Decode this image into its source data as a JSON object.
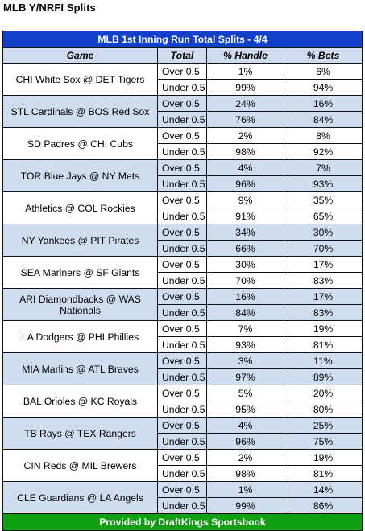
{
  "page_title": "MLB Y/NRFI Splits",
  "table": {
    "banner": "MLB 1st Inning Run Total Splits - 4/4",
    "headers": {
      "game": "Game",
      "total": "Total",
      "handle": "% Handle",
      "bets": "% Bets"
    },
    "games": [
      {
        "name": "CHI White Sox @ DET Tigers",
        "shaded": false,
        "over": {
          "label": "Over 0.5",
          "handle": "1%",
          "bets": "6%"
        },
        "under": {
          "label": "Under 0.5",
          "handle": "99%",
          "bets": "94%"
        }
      },
      {
        "name": "STL Cardinals @ BOS Red Sox",
        "shaded": true,
        "over": {
          "label": "Over 0.5",
          "handle": "24%",
          "bets": "16%"
        },
        "under": {
          "label": "Under 0.5",
          "handle": "76%",
          "bets": "84%"
        }
      },
      {
        "name": "SD Padres @ CHI Cubs",
        "shaded": false,
        "over": {
          "label": "Over 0.5",
          "handle": "2%",
          "bets": "8%"
        },
        "under": {
          "label": "Under 0.5",
          "handle": "98%",
          "bets": "92%"
        }
      },
      {
        "name": "TOR Blue Jays @ NY Mets",
        "shaded": true,
        "over": {
          "label": "Over 0.5",
          "handle": "4%",
          "bets": "7%"
        },
        "under": {
          "label": "Under 0.5",
          "handle": "96%",
          "bets": "93%"
        }
      },
      {
        "name": "Athletics @ COL Rockies",
        "shaded": false,
        "over": {
          "label": "Over 0.5",
          "handle": "9%",
          "bets": "35%"
        },
        "under": {
          "label": "Under 0.5",
          "handle": "91%",
          "bets": "65%"
        }
      },
      {
        "name": "NY Yankees @ PIT Pirates",
        "shaded": true,
        "over": {
          "label": "Over 0.5",
          "handle": "34%",
          "bets": "30%"
        },
        "under": {
          "label": "Under 0.5",
          "handle": "66%",
          "bets": "70%"
        }
      },
      {
        "name": "SEA Mariners @ SF Giants",
        "shaded": false,
        "over": {
          "label": "Over 0.5",
          "handle": "30%",
          "bets": "17%"
        },
        "under": {
          "label": "Under 0.5",
          "handle": "70%",
          "bets": "83%"
        }
      },
      {
        "name": "ARI Diamondbacks @ WAS Nationals",
        "shaded": true,
        "over": {
          "label": "Over 0.5",
          "handle": "16%",
          "bets": "17%"
        },
        "under": {
          "label": "Under 0.5",
          "handle": "84%",
          "bets": "83%"
        }
      },
      {
        "name": "LA Dodgers @ PHI Phillies",
        "shaded": false,
        "over": {
          "label": "Over 0.5",
          "handle": "7%",
          "bets": "19%"
        },
        "under": {
          "label": "Under 0.5",
          "handle": "93%",
          "bets": "81%"
        }
      },
      {
        "name": "MIA Marlins @ ATL Braves",
        "shaded": true,
        "over": {
          "label": "Over 0.5",
          "handle": "3%",
          "bets": "11%"
        },
        "under": {
          "label": "Under 0.5",
          "handle": "97%",
          "bets": "89%"
        }
      },
      {
        "name": "BAL Orioles @ KC Royals",
        "shaded": false,
        "over": {
          "label": "Over 0.5",
          "handle": "5%",
          "bets": "20%"
        },
        "under": {
          "label": "Under 0.5",
          "handle": "95%",
          "bets": "80%"
        }
      },
      {
        "name": "TB Rays @ TEX Rangers",
        "shaded": true,
        "over": {
          "label": "Over 0.5",
          "handle": "4%",
          "bets": "25%"
        },
        "under": {
          "label": "Under 0.5",
          "handle": "96%",
          "bets": "75%"
        }
      },
      {
        "name": "CIN Reds @ MIL Brewers",
        "shaded": false,
        "over": {
          "label": "Over 0.5",
          "handle": "2%",
          "bets": "19%"
        },
        "under": {
          "label": "Under 0.5",
          "handle": "98%",
          "bets": "81%"
        }
      },
      {
        "name": "CLE Guardians @ LA Angels",
        "shaded": true,
        "over": {
          "label": "Over 0.5",
          "handle": "1%",
          "bets": "14%"
        },
        "under": {
          "label": "Under 0.5",
          "handle": "99%",
          "bets": "86%"
        }
      }
    ],
    "footer": "Provided by DraftKings Sportsbook"
  },
  "colors": {
    "banner_blue": "#1240c9",
    "row_shade": "#d0dcf0",
    "footer_green": "#11a011"
  }
}
